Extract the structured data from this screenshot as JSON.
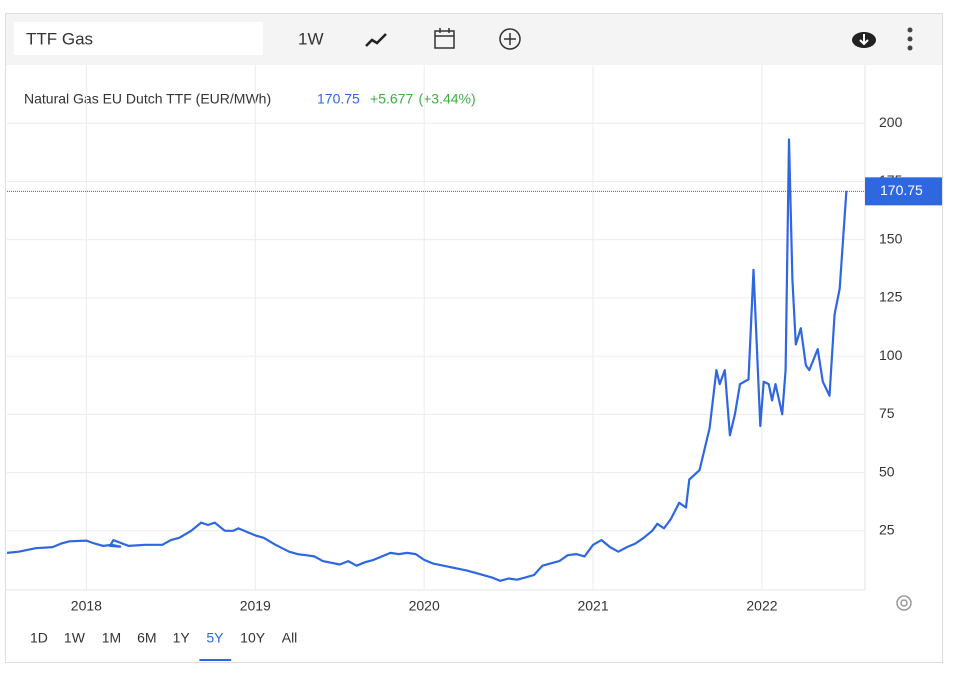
{
  "toolbar": {
    "search": "TTF Gas",
    "interval": "1W"
  },
  "ranges": {
    "items": [
      "1D",
      "1W",
      "1M",
      "6M",
      "1Y",
      "5Y",
      "10Y",
      "All"
    ],
    "selected": 5
  },
  "chart_data": {
    "type": "line",
    "title": "Natural Gas EU Dutch TTF (EUR/MWh)",
    "last_value": 170.75,
    "change": "+5.677",
    "change_pct": "(+3.44%)",
    "color": "#2f67e0",
    "x": [
      2017.53,
      2017.6,
      2017.7,
      2017.8,
      2017.85,
      2017.9,
      2018.0,
      2018.05,
      2018.1,
      2018.15,
      2018.2,
      2018.14,
      2018.16,
      2018.25,
      2018.35,
      2018.45,
      2018.5,
      2018.55,
      2018.62,
      2018.68,
      2018.72,
      2018.76,
      2018.82,
      2018.87,
      2018.9,
      2018.95,
      2019.0,
      2019.05,
      2019.12,
      2019.2,
      2019.25,
      2019.3,
      2019.35,
      2019.4,
      2019.5,
      2019.55,
      2019.6,
      2019.65,
      2019.7,
      2019.75,
      2019.8,
      2019.85,
      2019.9,
      2019.95,
      2020.0,
      2020.05,
      2020.15,
      2020.25,
      2020.3,
      2020.4,
      2020.45,
      2020.5,
      2020.55,
      2020.6,
      2020.65,
      2020.7,
      2020.8,
      2020.85,
      2020.9,
      2020.95,
      2021.0,
      2021.05,
      2021.1,
      2021.15,
      2021.2,
      2021.25,
      2021.3,
      2021.35,
      2021.38,
      2021.42,
      2021.46,
      2021.51,
      2021.55,
      2021.57,
      2021.63,
      2021.69,
      2021.73,
      2021.75,
      2021.78,
      2021.81,
      2021.84,
      2021.87,
      2021.92,
      2021.95,
      2021.99,
      2022.01,
      2022.04,
      2022.06,
      2022.08,
      2022.12,
      2022.14,
      2022.16,
      2022.18,
      2022.2,
      2022.23,
      2022.26,
      2022.28,
      2022.33,
      2022.36,
      2022.4,
      2022.43,
      2022.46,
      2022.5
    ],
    "values": [
      15.5,
      16,
      17.5,
      18,
      19.5,
      20.5,
      20.8,
      19.5,
      18.5,
      19,
      18.2,
      18.5,
      21,
      18.5,
      19,
      19,
      21,
      22,
      25,
      28.5,
      27.5,
      28.5,
      25,
      25,
      26,
      24.5,
      23,
      22,
      19,
      16,
      15,
      14.5,
      14,
      12,
      10.5,
      12,
      10,
      11.5,
      12.5,
      14,
      15.5,
      15,
      15.5,
      15,
      12.5,
      11,
      9.5,
      8,
      7,
      5,
      3.5,
      4.5,
      4,
      5,
      6,
      10,
      12,
      14.5,
      15,
      14,
      19,
      21,
      18,
      16,
      18,
      19.5,
      22,
      25,
      28,
      26,
      30,
      37,
      35,
      47,
      51,
      69,
      94,
      88,
      94,
      66,
      75,
      88,
      90,
      137,
      70,
      89,
      88,
      81,
      88,
      75,
      94,
      193,
      133,
      105,
      112,
      96,
      94,
      103,
      89,
      83,
      118,
      129,
      171
    ],
    "xlim": [
      2017.53,
      2022.61
    ],
    "xticks": [
      2018,
      2019,
      2020,
      2021,
      2022
    ],
    "ylim": [
      0,
      225
    ],
    "yticks": [
      25,
      50,
      75,
      100,
      125,
      150,
      175,
      200
    ],
    "grid": true
  }
}
